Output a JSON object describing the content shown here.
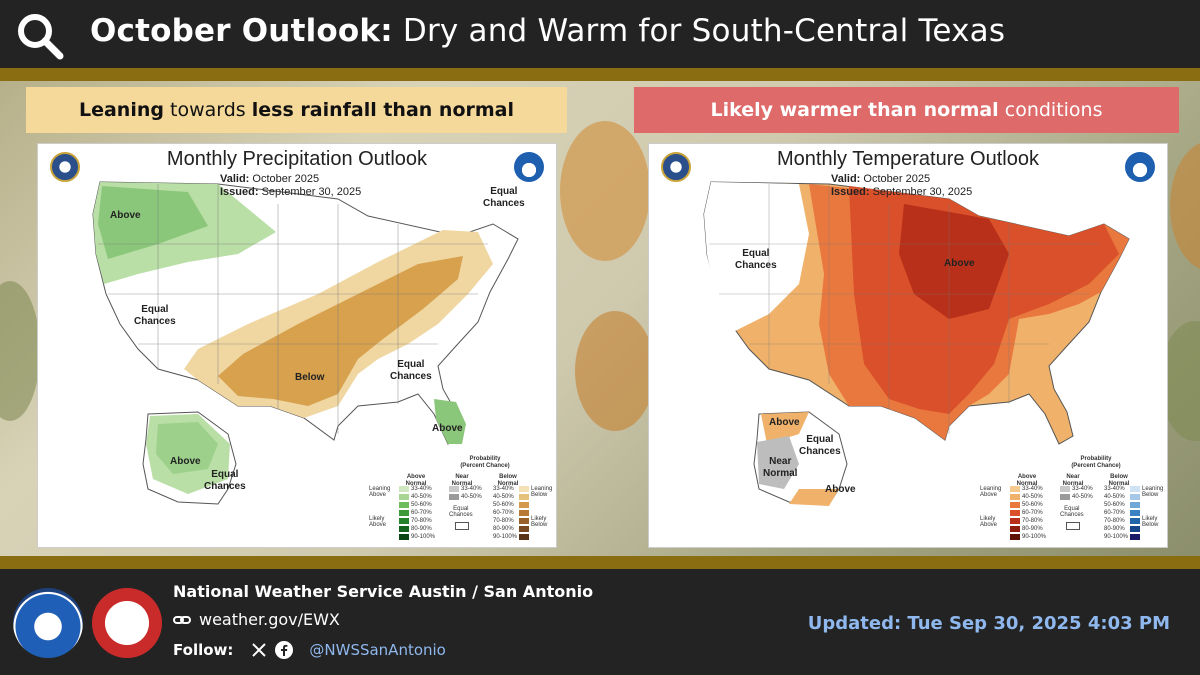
{
  "header": {
    "title_bold": "October Outlook:",
    "title_rest": "Dry and Warm for South-Central Texas",
    "icon": "search-icon"
  },
  "colors": {
    "header_bg": "#232323",
    "gold": "#8a6d10",
    "banner_left": "#f5d99a",
    "banner_right": "#de6a6a",
    "precip_below_light": "#f0d7a2",
    "precip_below_dark": "#d7a14e",
    "precip_above_light": "#b9dfa6",
    "precip_above_dark": "#8bc77a",
    "temp_40": "#f0b26a",
    "temp_50": "#e9783f",
    "temp_60": "#d9502a",
    "temp_70": "#b8301a",
    "near_normal": "#bdbdbd",
    "link_blue": "#8fb8ee"
  },
  "left_banner": {
    "part1_bold": "Leaning",
    "part2": " towards ",
    "part3_bold": "less rainfall than normal"
  },
  "right_banner": {
    "part1_bold": "Likely warmer than normal",
    "part2": " conditions"
  },
  "precip_map": {
    "title": "Monthly Precipitation Outlook",
    "valid_label": "Valid:",
    "valid_value": "October 2025",
    "issued_label": "Issued:",
    "issued_value": "September 30, 2025",
    "labels": {
      "above_nw": "Above",
      "equal_ne": "Equal\nChances",
      "equal_w": "Equal\nChances",
      "below": "Below",
      "equal_se": "Equal\nChances",
      "above_fl": "Above",
      "above_ak": "Above",
      "equal_ak": "Equal\nChances"
    }
  },
  "temp_map": {
    "title": "Monthly Temperature Outlook",
    "valid_label": "Valid:",
    "valid_value": "October 2025",
    "issued_label": "Issued:",
    "issued_value": "September 30, 2025",
    "labels": {
      "equal_w": "Equal\nChances",
      "above_mw": "Above",
      "above_ak_n": "Above",
      "equal_ak": "Equal\nChances",
      "near_ak": "Near\nNormal",
      "above_ak_s": "Above"
    }
  },
  "legend": {
    "heading": "Probability\n(Percent Chance)",
    "col_above": "Above\nNormal",
    "col_near": "Near\nNormal",
    "col_below": "Below\nNormal",
    "leaning_above": "Leaning\nAbove",
    "likely_above": "Likely\nAbove",
    "leaning_below": "Leaning\nBelow",
    "likely_below": "Likely\nBelow",
    "equal_chances": "Equal\nChances",
    "ranges": [
      "33-40%",
      "40-50%",
      "50-60%",
      "60-70%",
      "70-80%",
      "80-90%",
      "90-100%"
    ],
    "near_ranges": [
      "33-40%",
      "40-50%"
    ]
  },
  "footer": {
    "office": "National Weather Service Austin / San Antonio",
    "website": "weather.gov/EWX",
    "follow_label": "Follow:",
    "handle": "@NWSSanAntonio",
    "updated": "Updated: Tue Sep 30, 2025 4:03 PM"
  }
}
